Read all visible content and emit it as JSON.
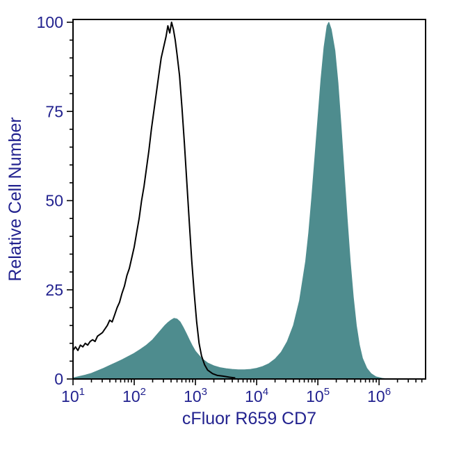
{
  "chart_data": {
    "type": "area",
    "subtype": "flow-cytometry-histogram-overlay",
    "title": "",
    "xlabel": "cFluor R659 CD7",
    "ylabel": "Relative Cell Number",
    "x_scale": "log",
    "x_log_range": [
      1,
      6.76
    ],
    "x_major_tick_exponents": [
      1,
      2,
      3,
      4,
      5,
      6
    ],
    "x_tick_base": "10",
    "y_ticks": [
      0,
      25,
      50,
      75,
      100
    ],
    "y_minor_step": 5,
    "ylim": [
      0,
      100
    ],
    "grid": false,
    "legend": "none",
    "colors": {
      "axis_line": "#000000",
      "label_text": "#22228f",
      "filled_series": "#4e8c8e",
      "open_series": "#000000",
      "background": "#ffffff"
    },
    "series": [
      {
        "name": "cd7-stained-filled-histogram",
        "style": "filled",
        "stroke": "#4e8c8e",
        "fill": "#4e8c8e",
        "points_log10x_y": [
          [
            1.0,
            0.3
          ],
          [
            1.1,
            0.7
          ],
          [
            1.2,
            1.1
          ],
          [
            1.3,
            1.6
          ],
          [
            1.4,
            2.3
          ],
          [
            1.5,
            3.0
          ],
          [
            1.6,
            3.8
          ],
          [
            1.7,
            4.6
          ],
          [
            1.8,
            5.4
          ],
          [
            1.9,
            6.3
          ],
          [
            2.0,
            7.2
          ],
          [
            2.1,
            8.3
          ],
          [
            2.2,
            9.5
          ],
          [
            2.3,
            11.0
          ],
          [
            2.4,
            13.0
          ],
          [
            2.5,
            15.0
          ],
          [
            2.55,
            15.8
          ],
          [
            2.6,
            16.5
          ],
          [
            2.65,
            17.0
          ],
          [
            2.7,
            16.8
          ],
          [
            2.75,
            16.0
          ],
          [
            2.8,
            14.5
          ],
          [
            2.85,
            12.8
          ],
          [
            2.9,
            11.0
          ],
          [
            2.95,
            9.3
          ],
          [
            3.0,
            7.8
          ],
          [
            3.1,
            5.8
          ],
          [
            3.2,
            4.5
          ],
          [
            3.3,
            3.7
          ],
          [
            3.4,
            3.2
          ],
          [
            3.5,
            2.9
          ],
          [
            3.6,
            2.7
          ],
          [
            3.7,
            2.6
          ],
          [
            3.8,
            2.6
          ],
          [
            3.9,
            2.7
          ],
          [
            4.0,
            3.0
          ],
          [
            4.1,
            3.5
          ],
          [
            4.2,
            4.3
          ],
          [
            4.3,
            5.6
          ],
          [
            4.4,
            7.5
          ],
          [
            4.5,
            10.5
          ],
          [
            4.6,
            15.0
          ],
          [
            4.7,
            22.0
          ],
          [
            4.8,
            33.0
          ],
          [
            4.85,
            41.0
          ],
          [
            4.9,
            51.0
          ],
          [
            4.95,
            62.0
          ],
          [
            5.0,
            73.0
          ],
          [
            5.05,
            84.0
          ],
          [
            5.1,
            93.0
          ],
          [
            5.15,
            99.0
          ],
          [
            5.18,
            100.0
          ],
          [
            5.22,
            98.0
          ],
          [
            5.28,
            92.0
          ],
          [
            5.33,
            83.0
          ],
          [
            5.38,
            71.0
          ],
          [
            5.43,
            58.0
          ],
          [
            5.48,
            45.0
          ],
          [
            5.53,
            33.0
          ],
          [
            5.58,
            23.0
          ],
          [
            5.63,
            15.0
          ],
          [
            5.68,
            9.5
          ],
          [
            5.73,
            5.8
          ],
          [
            5.8,
            3.0
          ],
          [
            5.87,
            1.5
          ],
          [
            5.95,
            0.6
          ],
          [
            6.05,
            0.2
          ],
          [
            6.15,
            0.0
          ]
        ]
      },
      {
        "name": "unstained-control-open-histogram",
        "style": "open",
        "stroke": "#000000",
        "fill": "none",
        "points_log10x_y": [
          [
            1.0,
            8.0
          ],
          [
            1.04,
            9.0
          ],
          [
            1.08,
            8.0
          ],
          [
            1.12,
            9.5
          ],
          [
            1.16,
            9.0
          ],
          [
            1.2,
            10.0
          ],
          [
            1.24,
            9.5
          ],
          [
            1.28,
            10.5
          ],
          [
            1.32,
            11.0
          ],
          [
            1.36,
            10.5
          ],
          [
            1.4,
            12.0
          ],
          [
            1.44,
            12.5
          ],
          [
            1.48,
            13.0
          ],
          [
            1.52,
            14.0
          ],
          [
            1.56,
            15.0
          ],
          [
            1.6,
            16.5
          ],
          [
            1.64,
            16.0
          ],
          [
            1.68,
            18.0
          ],
          [
            1.72,
            20.0
          ],
          [
            1.76,
            21.5
          ],
          [
            1.8,
            24.0
          ],
          [
            1.84,
            26.0
          ],
          [
            1.88,
            29.0
          ],
          [
            1.92,
            31.0
          ],
          [
            1.96,
            34.0
          ],
          [
            2.0,
            37.0
          ],
          [
            2.04,
            41.0
          ],
          [
            2.08,
            45.0
          ],
          [
            2.12,
            50.0
          ],
          [
            2.16,
            54.0
          ],
          [
            2.2,
            59.0
          ],
          [
            2.24,
            64.0
          ],
          [
            2.28,
            70.0
          ],
          [
            2.32,
            75.0
          ],
          [
            2.36,
            80.0
          ],
          [
            2.4,
            85.0
          ],
          [
            2.44,
            90.0
          ],
          [
            2.48,
            93.0
          ],
          [
            2.52,
            96.0
          ],
          [
            2.55,
            99.0
          ],
          [
            2.58,
            97.0
          ],
          [
            2.61,
            100.0
          ],
          [
            2.64,
            98.0
          ],
          [
            2.67,
            95.0
          ],
          [
            2.7,
            91.0
          ],
          [
            2.74,
            85.0
          ],
          [
            2.78,
            76.0
          ],
          [
            2.82,
            66.0
          ],
          [
            2.86,
            55.0
          ],
          [
            2.9,
            44.0
          ],
          [
            2.94,
            33.0
          ],
          [
            2.98,
            24.0
          ],
          [
            3.02,
            16.0
          ],
          [
            3.06,
            10.0
          ],
          [
            3.1,
            6.5
          ],
          [
            3.15,
            4.0
          ],
          [
            3.2,
            2.5
          ],
          [
            3.28,
            1.5
          ],
          [
            3.36,
            1.0
          ],
          [
            3.45,
            0.8
          ],
          [
            3.55,
            0.5
          ],
          [
            3.65,
            0.3
          ]
        ]
      }
    ]
  }
}
